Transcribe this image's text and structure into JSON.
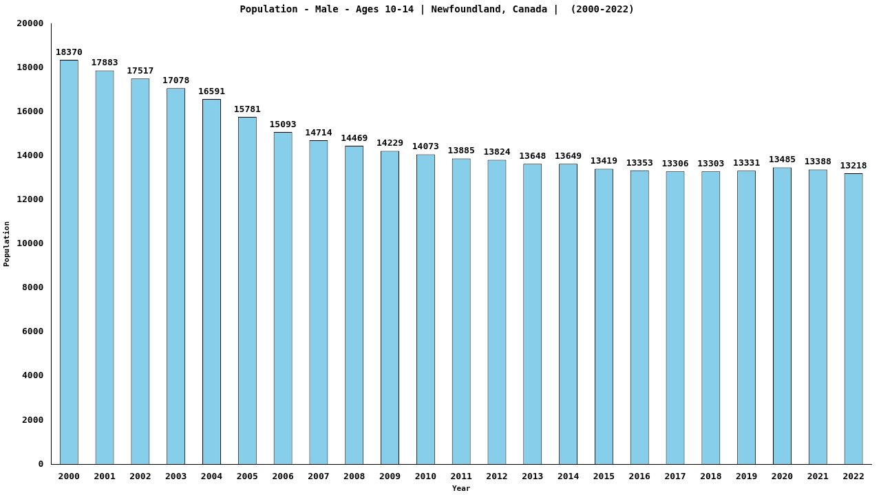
{
  "chart_data": {
    "type": "bar",
    "title": "Population - Male - Ages 10-14 | Newfoundland, Canada |  (2000-2022)",
    "x_label": "Year",
    "y_label": "Population",
    "categories": [
      "2000",
      "2001",
      "2002",
      "2003",
      "2004",
      "2005",
      "2006",
      "2007",
      "2008",
      "2009",
      "2010",
      "2011",
      "2012",
      "2013",
      "2014",
      "2015",
      "2016",
      "2017",
      "2018",
      "2019",
      "2020",
      "2021",
      "2022"
    ],
    "values": [
      18370,
      17883,
      17517,
      17078,
      16591,
      15781,
      15093,
      14714,
      14469,
      14229,
      14073,
      13885,
      13824,
      13648,
      13649,
      13419,
      13353,
      13306,
      13303,
      13331,
      13485,
      13388,
      13218
    ],
    "color": "#87ceeb",
    "ylim": [
      0,
      20000
    ],
    "yticks": [
      0,
      2000,
      4000,
      6000,
      8000,
      10000,
      12000,
      14000,
      16000,
      18000,
      20000
    ],
    "grid": false,
    "data_labels": true
  }
}
